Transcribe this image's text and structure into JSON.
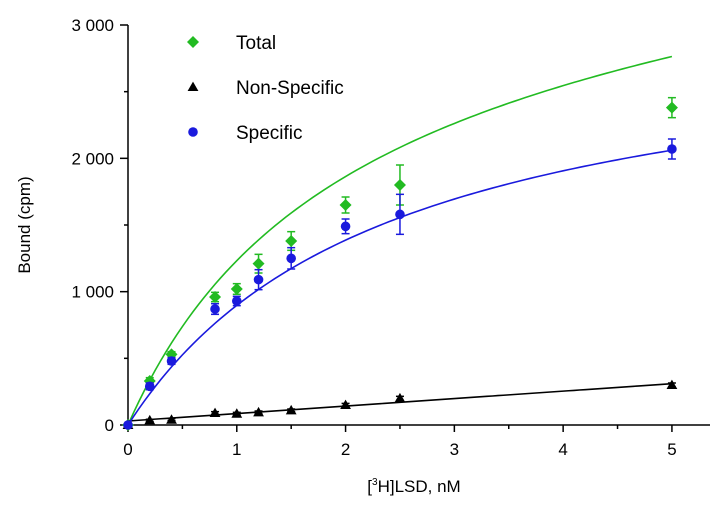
{
  "chart_data": {
    "type": "scatter",
    "xlabel_parts": [
      "[",
      "3",
      "H]LSD, nM"
    ],
    "ylabel": "Bound (cpm)",
    "xlim": [
      0,
      5.35
    ],
    "ylim": [
      0,
      3000
    ],
    "x_ticks": [
      0,
      1,
      2,
      3,
      4,
      5
    ],
    "x_tick_labels": [
      "0",
      "1",
      "2",
      "3",
      "4",
      "5"
    ],
    "y_ticks": [
      0,
      1000,
      2000,
      3000
    ],
    "y_tick_labels": [
      "0",
      "1 000",
      "2 000",
      "3 000"
    ],
    "grid": false,
    "legend_position": "top-left",
    "series": [
      {
        "name": "Total",
        "color": "#22bb22",
        "marker": "diamond",
        "x": [
          0,
          0.2,
          0.4,
          0.8,
          1.0,
          1.2,
          1.5,
          2.0,
          2.5,
          5.0
        ],
        "y": [
          0,
          330,
          530,
          960,
          1020,
          1210,
          1380,
          1650,
          1800,
          2380
        ],
        "err": [
          0,
          25,
          20,
          35,
          40,
          70,
          70,
          60,
          150,
          75
        ],
        "fit": {
          "model": "one_site_plus_linear",
          "bmax": 3400,
          "kd": 1.9,
          "ns": 60
        }
      },
      {
        "name": "Non-Specific",
        "color": "#000000",
        "marker": "triangle",
        "x": [
          0,
          0.2,
          0.4,
          0.8,
          1.0,
          1.2,
          1.5,
          2.0,
          2.5,
          5.0
        ],
        "y": [
          0,
          35,
          40,
          90,
          85,
          95,
          110,
          150,
          200,
          300
        ],
        "err": [
          0,
          8,
          8,
          10,
          10,
          10,
          10,
          12,
          15,
          15
        ],
        "fit": {
          "model": "linear",
          "intercept": 30,
          "slope": 56
        }
      },
      {
        "name": "Specific",
        "color": "#1a1add",
        "marker": "circle",
        "x": [
          0,
          0.2,
          0.4,
          0.8,
          1.0,
          1.2,
          1.5,
          2.0,
          2.5,
          5.0
        ],
        "y": [
          0,
          290,
          480,
          870,
          930,
          1090,
          1250,
          1490,
          1580,
          2070
        ],
        "err": [
          0,
          25,
          25,
          40,
          35,
          75,
          80,
          55,
          150,
          75
        ],
        "fit": {
          "model": "one_site",
          "bmax": 3050,
          "kd": 2.4
        }
      }
    ]
  }
}
